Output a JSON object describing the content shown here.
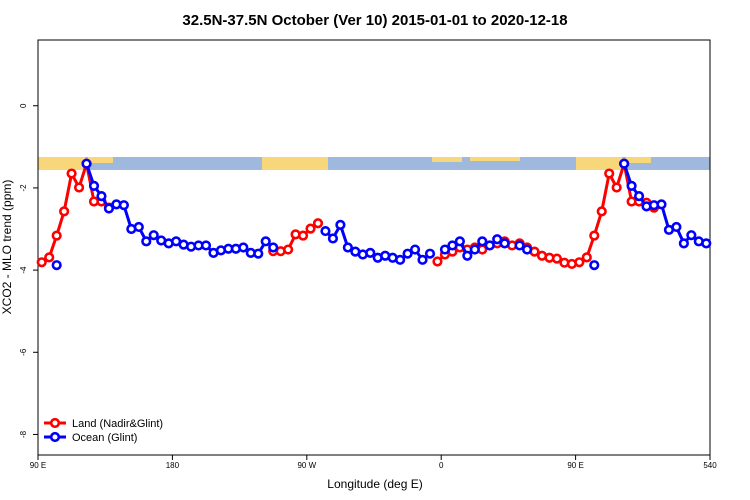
{
  "chart_data": {
    "type": "line",
    "title": "32.5N-37.5N October (Ver 10)   2015-01-01 to 2020-12-18",
    "x_label": "Longitude (deg E)",
    "y_label": "XCO2 - MLO trend (ppm)",
    "x": [
      92.5,
      97.5,
      102.5,
      107.5,
      112.5,
      117.5,
      122.5,
      127.5,
      132.5,
      137.5,
      142.5,
      147.5,
      152.5,
      157.5,
      162.5,
      167.5,
      172.5,
      177.5,
      182.5,
      187.5,
      192.5,
      197.5,
      202.5,
      207.5,
      212.5,
      217.5,
      222.5,
      227.5,
      232.5,
      237.5,
      242.5,
      247.5,
      252.5,
      257.5,
      262.5,
      267.5,
      272.5,
      277.5,
      282.5,
      287.5,
      292.5,
      297.5,
      302.5,
      307.5,
      312.5,
      317.5,
      322.5,
      327.5,
      332.5,
      337.5,
      342.5,
      347.5,
      352.5,
      357.5,
      362.5,
      367.5,
      372.5,
      377.5,
      382.5,
      387.5,
      392.5,
      397.5,
      402.5,
      407.5,
      412.5,
      417.5,
      422.5,
      427.5,
      432.5,
      437.5,
      442.5,
      447.5,
      452.5,
      457.5,
      462.5,
      467.5,
      472.5,
      477.5,
      482.5,
      487.5,
      492.5,
      497.5,
      502.5,
      507.5,
      512.5,
      517.5,
      522.5,
      527.5,
      532.5,
      537.5
    ],
    "series": [
      {
        "name": "Land (Nadir&Glint)",
        "color": "#ff0000",
        "values": [
          -3.81,
          -3.69,
          -3.16,
          -2.57,
          -1.65,
          -1.99,
          -1.41,
          -2.33,
          -2.33,
          -2.48,
          null,
          null,
          null,
          null,
          null,
          null,
          null,
          null,
          null,
          null,
          null,
          null,
          null,
          null,
          null,
          null,
          null,
          null,
          null,
          null,
          null,
          -3.54,
          -3.54,
          -3.5,
          -3.13,
          -3.16,
          -2.99,
          -2.86,
          null,
          null,
          null,
          null,
          null,
          null,
          null,
          null,
          null,
          null,
          null,
          null,
          null,
          null,
          null,
          -3.79,
          -3.62,
          -3.55,
          -3.45,
          -3.5,
          -3.45,
          -3.5,
          -3.4,
          -3.35,
          -3.3,
          -3.4,
          -3.35,
          -3.45,
          -3.55,
          -3.65,
          -3.7,
          -3.72,
          -3.82,
          -3.85,
          -3.81,
          -3.69,
          -3.16,
          -2.57,
          -1.65,
          -1.99,
          -1.41,
          -2.33,
          -2.33,
          -2.36,
          -2.48,
          null,
          null,
          null,
          null,
          null,
          null,
          null
        ]
      },
      {
        "name": "Ocean (Glint)",
        "color": "#0000ff",
        "values": [
          null,
          null,
          -3.88,
          null,
          null,
          null,
          -1.41,
          -1.95,
          -2.2,
          -2.5,
          -2.4,
          -2.42,
          -3.0,
          -2.95,
          -3.3,
          -3.15,
          -3.28,
          -3.35,
          -3.3,
          -3.38,
          -3.43,
          -3.4,
          -3.4,
          -3.58,
          -3.52,
          -3.48,
          -3.48,
          -3.45,
          -3.58,
          -3.6,
          -3.3,
          -3.45,
          null,
          null,
          null,
          null,
          null,
          null,
          -3.05,
          -3.23,
          -2.9,
          -3.45,
          -3.55,
          -3.62,
          -3.58,
          -3.7,
          -3.65,
          -3.7,
          -3.75,
          -3.6,
          -3.5,
          -3.75,
          -3.6,
          null,
          -3.5,
          -3.4,
          -3.3,
          -3.65,
          -3.5,
          -3.3,
          -3.4,
          -3.25,
          -3.35,
          null,
          -3.4,
          -3.5,
          null,
          null,
          null,
          null,
          null,
          null,
          null,
          null,
          -3.88,
          null,
          null,
          null,
          -1.41,
          -1.95,
          -2.2,
          -2.45,
          -2.42,
          -2.4,
          -3.02,
          -2.95,
          -3.35,
          -3.15,
          -3.3,
          -3.35
        ]
      }
    ],
    "xlim": [
      90,
      540
    ],
    "xticks": [
      {
        "value": 90,
        "label": "90 E"
      },
      180,
      {
        "value": 270,
        "label": "90 W"
      },
      {
        "value": 360,
        "label": "0"
      },
      {
        "value": 450,
        "label": "90 E"
      },
      540
    ],
    "ylim": [
      -8.5,
      1.6
    ],
    "yticks": [
      0,
      -2,
      -4,
      -6,
      -8
    ],
    "legend": "bottom-left"
  }
}
